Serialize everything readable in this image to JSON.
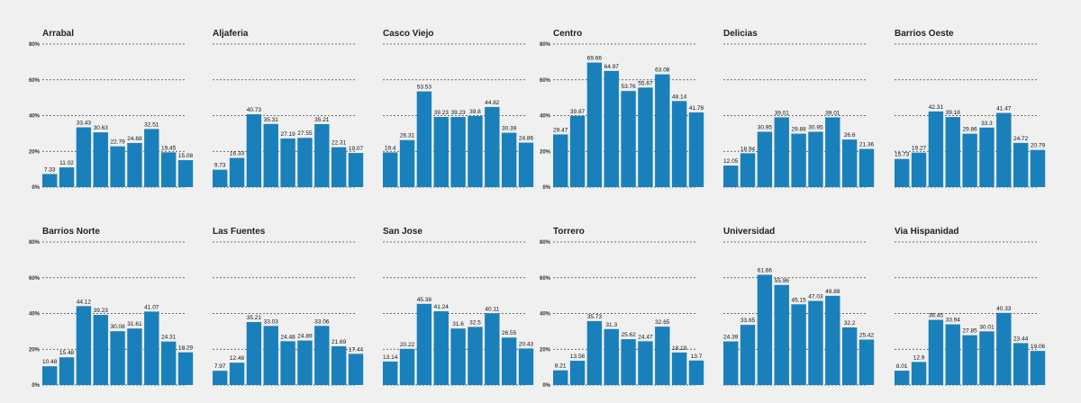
{
  "chart_data": [
    {
      "type": "bar",
      "title": "Arrabal",
      "ylim": [
        0,
        80
      ],
      "yticks": [
        "0%",
        "20%",
        "40%",
        "60%",
        "80%"
      ],
      "values": [
        7.33,
        11.02,
        33.43,
        30.63,
        22.79,
        24.68,
        32.51,
        19.45,
        15.08
      ]
    },
    {
      "type": "bar",
      "title": "Aljaferia",
      "ylim": [
        0,
        80
      ],
      "yticks": [
        "",
        "",
        "",
        "",
        ""
      ],
      "values": [
        9.73,
        16.33,
        40.73,
        35.31,
        27.19,
        27.55,
        35.21,
        22.31,
        19.07
      ]
    },
    {
      "type": "bar",
      "title": "Casco Viejo",
      "ylim": [
        0,
        80
      ],
      "yticks": [
        "",
        "",
        "",
        "",
        ""
      ],
      "values": [
        19.4,
        26.31,
        53.53,
        39.23,
        39.23,
        39.8,
        44.82,
        30.39,
        24.86
      ]
    },
    {
      "type": "bar",
      "title": "Centro",
      "ylim": [
        0,
        80
      ],
      "yticks": [
        "0%",
        "20%",
        "40%",
        "60%",
        "80%"
      ],
      "values": [
        29.47,
        39.87,
        69.66,
        64.97,
        53.76,
        55.67,
        63.08,
        48.14,
        41.78
      ]
    },
    {
      "type": "bar",
      "title": "Delicias",
      "ylim": [
        0,
        80
      ],
      "yticks": [
        "",
        "",
        "",
        "",
        ""
      ],
      "values": [
        12.05,
        18.94,
        30.95,
        39.01,
        29.88,
        30.95,
        39.01,
        26.6,
        21.36
      ]
    },
    {
      "type": "bar",
      "title": "Barrios Oeste",
      "ylim": [
        0,
        80
      ],
      "yticks": [
        "",
        "",
        "",
        "",
        ""
      ],
      "values": [
        15.73,
        19.27,
        42.31,
        39.18,
        29.86,
        33.3,
        41.47,
        24.72,
        20.79
      ]
    },
    {
      "type": "bar",
      "title": "Barrios Norte",
      "ylim": [
        0,
        80
      ],
      "yticks": [
        "0%",
        "20%",
        "40%",
        "60%",
        "80%"
      ],
      "values": [
        10.48,
        15.48,
        44.12,
        39.23,
        30.08,
        31.61,
        41.07,
        24.31,
        18.29
      ]
    },
    {
      "type": "bar",
      "title": "Las Fuentes",
      "ylim": [
        0,
        80
      ],
      "yticks": [
        "",
        "",
        "",
        "",
        ""
      ],
      "values": [
        7.97,
        12.48,
        35.21,
        33.03,
        24.48,
        24.89,
        33.06,
        21.69,
        17.44
      ]
    },
    {
      "type": "bar",
      "title": "San Jose",
      "ylim": [
        0,
        80
      ],
      "yticks": [
        "",
        "",
        "",
        "",
        ""
      ],
      "values": [
        13.14,
        20.22,
        45.38,
        41.24,
        31.6,
        32.5,
        40.11,
        26.55,
        20.43
      ]
    },
    {
      "type": "bar",
      "title": "Torrero",
      "ylim": [
        0,
        80
      ],
      "yticks": [
        "0%",
        "20%",
        "40%",
        "60%",
        "80%"
      ],
      "values": [
        8.21,
        13.56,
        35.73,
        31.3,
        25.62,
        24.47,
        32.65,
        18.19,
        13.7
      ]
    },
    {
      "type": "bar",
      "title": "Universidad",
      "ylim": [
        0,
        80
      ],
      "yticks": [
        "",
        "",
        "",
        "",
        ""
      ],
      "values": [
        24.39,
        33.65,
        61.66,
        55.96,
        45.15,
        47.03,
        49.89,
        32.2,
        25.42
      ]
    },
    {
      "type": "bar",
      "title": "Via Hispanidad",
      "ylim": [
        0,
        80
      ],
      "yticks": [
        "",
        "",
        "",
        "",
        ""
      ],
      "values": [
        8.01,
        12.9,
        36.45,
        33.94,
        27.85,
        30.01,
        40.33,
        23.44,
        19.06
      ]
    }
  ]
}
